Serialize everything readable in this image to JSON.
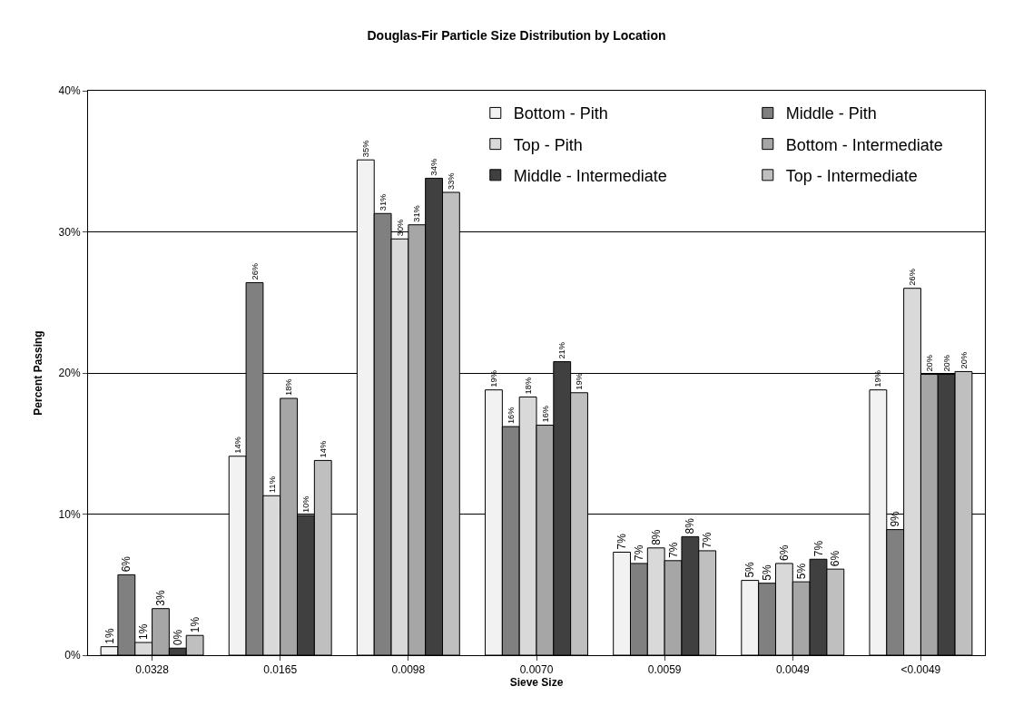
{
  "chart_data": {
    "type": "bar",
    "title": "Douglas-Fir Particle Size Distribution by Location",
    "xlabel": "Sieve Size",
    "ylabel": "Percent Passing",
    "categories": [
      "0.0328",
      "0.0165",
      "0.0098",
      "0.0070",
      "0.0059",
      "0.0049",
      "<0.0049"
    ],
    "series": [
      {
        "name": "Bottom - Pith",
        "color": "#f2f2f2",
        "values": [
          0.6,
          14.1,
          35.1,
          18.8,
          7.3,
          5.3,
          18.8
        ],
        "value_labels": [
          "1%",
          "14%",
          "35%",
          "19%",
          "7%",
          "5%",
          "19%"
        ]
      },
      {
        "name": "Middle - Pith",
        "color": "#808080",
        "values": [
          5.7,
          26.4,
          31.3,
          16.2,
          6.5,
          5.1,
          8.9
        ],
        "value_labels": [
          "6%",
          "26%",
          "31%",
          "16%",
          "7%",
          "5%",
          "9%"
        ]
      },
      {
        "name": "Top - Pith",
        "color": "#d9d9d9",
        "values": [
          0.9,
          11.3,
          29.5,
          18.3,
          7.6,
          6.5,
          26.0
        ],
        "value_labels": [
          "1%",
          "11%",
          "30%",
          "18%",
          "8%",
          "6%",
          "26%"
        ]
      },
      {
        "name": "Bottom - Intermediate",
        "color": "#a6a6a6",
        "values": [
          3.3,
          18.2,
          30.5,
          16.3,
          6.7,
          5.2,
          19.9
        ],
        "value_labels": [
          "3%",
          "18%",
          "31%",
          "16%",
          "7%",
          "5%",
          "20%"
        ]
      },
      {
        "name": "Middle - Intermediate",
        "color": "#404040",
        "values": [
          0.5,
          9.9,
          33.8,
          20.8,
          8.4,
          6.8,
          19.9
        ],
        "value_labels": [
          "0%",
          "10%",
          "34%",
          "21%",
          "8%",
          "7%",
          "20%"
        ]
      },
      {
        "name": "Top - Intermediate",
        "color": "#bfbfbf",
        "values": [
          1.4,
          13.8,
          32.8,
          18.6,
          7.4,
          6.1,
          20.1
        ],
        "value_labels": [
          "1%",
          "14%",
          "33%",
          "19%",
          "7%",
          "6%",
          "20%"
        ]
      }
    ],
    "ylim": [
      0,
      40
    ],
    "yticks": [
      {
        "value": 0,
        "label": "0%"
      },
      {
        "value": 10,
        "label": "10%"
      },
      {
        "value": 20,
        "label": "20%"
      },
      {
        "value": 30,
        "label": "30%"
      },
      {
        "value": 40,
        "label": "40%"
      }
    ],
    "grid": "y",
    "legend": "top right"
  }
}
